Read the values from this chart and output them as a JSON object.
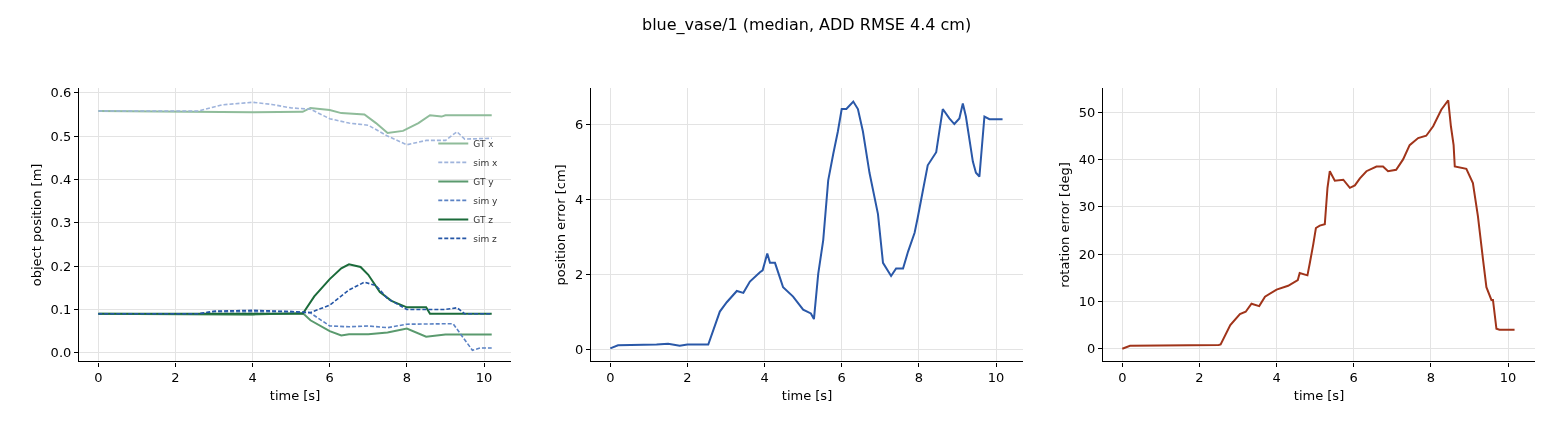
{
  "chart_data": [
    {
      "type": "line",
      "xlabel": "time [s]",
      "ylabel": "object position [m]",
      "xlim": [
        -0.5,
        10.7
      ],
      "xticks": [
        0,
        2,
        4,
        6,
        8,
        10
      ],
      "ylim": [
        -0.02,
        0.61
      ],
      "yticks": [
        {
          "value": 0,
          "label": "0.0"
        },
        {
          "value": 0.1,
          "label": "0.1"
        },
        {
          "value": 0.2,
          "label": "0.2"
        },
        {
          "value": 0.3,
          "label": "0.3"
        },
        {
          "value": 0.4,
          "label": "0.4"
        },
        {
          "value": 0.5,
          "label": "0.5"
        },
        {
          "value": 0.6,
          "label": "0.6"
        }
      ],
      "grid": true,
      "legend": "right",
      "marker": "none",
      "series": [
        {
          "name": "GT x",
          "color": "#8fbc9a",
          "line_style": "solid",
          "x": [
            0,
            4,
            5.3,
            5.5,
            6,
            6.3,
            6.9,
            7.2,
            7.5,
            7.9,
            8.3,
            8.6,
            8.9,
            9,
            10.2
          ],
          "values": [
            0.558,
            0.555,
            0.556,
            0.565,
            0.56,
            0.553,
            0.55,
            0.53,
            0.507,
            0.512,
            0.53,
            0.548,
            0.545,
            0.548,
            0.548
          ]
        },
        {
          "name": "sim x",
          "color": "#9fb4dc",
          "line_style": "dashed",
          "x": [
            0,
            2.6,
            3.2,
            4,
            4.5,
            5,
            5.5,
            6,
            6.5,
            7,
            7.5,
            8,
            8.5,
            9,
            9.3,
            9.5,
            10.2
          ],
          "values": [
            0.558,
            0.558,
            0.572,
            0.578,
            0.573,
            0.565,
            0.562,
            0.54,
            0.53,
            0.525,
            0.5,
            0.48,
            0.49,
            0.49,
            0.51,
            0.493,
            0.495
          ]
        },
        {
          "name": "GT y",
          "color": "#5a9a6e",
          "line_style": "solid",
          "x": [
            0,
            4,
            5.3,
            5.5,
            6,
            6.3,
            6.5,
            7,
            7.5,
            8,
            8.5,
            9,
            10.2
          ],
          "values": [
            0.09,
            0.088,
            0.092,
            0.075,
            0.05,
            0.04,
            0.043,
            0.043,
            0.047,
            0.056,
            0.037,
            0.042,
            0.042
          ]
        },
        {
          "name": "sim y",
          "color": "#5b82c4",
          "line_style": "dashed",
          "x": [
            0,
            2.6,
            3,
            5,
            5.5,
            6,
            6.5,
            7,
            7.5,
            8,
            9,
            9.2,
            9.5,
            9.7,
            9.9,
            10.2
          ],
          "values": [
            0.09,
            0.09,
            0.095,
            0.095,
            0.092,
            0.062,
            0.06,
            0.062,
            0.058,
            0.066,
            0.067,
            0.067,
            0.03,
            0.006,
            0.011,
            0.011
          ]
        },
        {
          "name": "GT z",
          "color": "#1b6b3a",
          "line_style": "solid",
          "x": [
            0,
            5.3,
            5.6,
            6,
            6.3,
            6.5,
            6.8,
            7,
            7.3,
            7.6,
            8,
            8.5,
            8.6,
            10.2
          ],
          "values": [
            0.09,
            0.09,
            0.13,
            0.17,
            0.195,
            0.204,
            0.198,
            0.18,
            0.14,
            0.12,
            0.105,
            0.105,
            0.09,
            0.09
          ]
        },
        {
          "name": "sim z",
          "color": "#2556a6",
          "line_style": "dashed",
          "x": [
            0,
            2.6,
            3,
            4,
            5,
            5.5,
            6,
            6.5,
            6.9,
            7.2,
            7.5,
            8,
            8.5,
            9,
            9.3,
            9.5,
            10.2
          ],
          "values": [
            0.09,
            0.09,
            0.096,
            0.098,
            0.095,
            0.093,
            0.11,
            0.145,
            0.163,
            0.155,
            0.125,
            0.1,
            0.1,
            0.1,
            0.104,
            0.09,
            0.09
          ]
        }
      ]
    },
    {
      "type": "line",
      "title": "blue_vase/1 (median, ADD RMSE 4.4 cm)",
      "xlabel": "time [s]",
      "ylabel": "position error [cm]",
      "xlim": [
        -0.5,
        10.7
      ],
      "xticks": [
        0,
        2,
        4,
        6,
        8,
        10
      ],
      "ylim": [
        -0.33,
        6.95
      ],
      "yticks": [
        0,
        2,
        4,
        6
      ],
      "grid": true,
      "marker": "none",
      "series": [
        {
          "color": "#2a58a8",
          "line_style": "solid",
          "x": [
            0,
            0.2,
            1.2,
            1.5,
            1.8,
            2,
            2.54,
            2.84,
            3.02,
            3.28,
            3.45,
            3.62,
            3.88,
            3.95,
            4.07,
            4.14,
            4.27,
            4.4,
            4.48,
            4.74,
            5.0,
            5.2,
            5.28,
            5.39,
            5.52,
            5.65,
            5.78,
            5.9,
            6.0,
            6.12,
            6.3,
            6.42,
            6.55,
            6.72,
            6.94,
            7.07,
            7.28,
            7.41,
            7.59,
            7.72,
            7.89,
            7.97,
            8.1,
            8.23,
            8.45,
            8.53,
            8.62,
            8.79,
            8.92,
            9.05,
            9.14,
            9.22,
            9.4,
            9.48,
            9.57,
            9.7,
            9.83,
            10.17
          ],
          "values": [
            0.02,
            0.1,
            0.12,
            0.14,
            0.09,
            0.12,
            0.12,
            1.0,
            1.25,
            1.55,
            1.5,
            1.8,
            2.05,
            2.1,
            2.55,
            2.3,
            2.3,
            1.9,
            1.65,
            1.4,
            1.05,
            0.95,
            0.8,
            2.0,
            2.9,
            4.5,
            5.2,
            5.8,
            6.4,
            6.4,
            6.6,
            6.4,
            5.8,
            4.7,
            3.6,
            2.3,
            1.95,
            2.15,
            2.15,
            2.6,
            3.1,
            3.5,
            4.2,
            4.9,
            5.25,
            5.8,
            6.4,
            6.15,
            6.0,
            6.15,
            6.55,
            6.2,
            5.0,
            4.7,
            4.6,
            6.2,
            6.13,
            6.13
          ]
        }
      ]
    },
    {
      "type": "line",
      "xlabel": "time [s]",
      "ylabel": "rotation error [deg]",
      "xlim": [
        -0.5,
        10.7
      ],
      "xticks": [
        0,
        2,
        4,
        6,
        8,
        10
      ],
      "ylim": [
        -2.7,
        55
      ],
      "yticks": [
        0,
        10,
        20,
        30,
        40,
        50
      ],
      "grid": true,
      "marker": "none",
      "series": [
        {
          "color": "#a0341a",
          "line_style": "solid",
          "x": [
            0,
            0.2,
            2.5,
            2.55,
            2.8,
            3.05,
            3.2,
            3.35,
            3.55,
            3.7,
            4.0,
            4.3,
            4.55,
            4.6,
            4.8,
            4.86,
            4.95,
            5.02,
            5.12,
            5.25,
            5.32,
            5.38,
            5.51,
            5.73,
            5.9,
            6.03,
            6.16,
            6.33,
            6.59,
            6.76,
            6.89,
            7.1,
            7.28,
            7.45,
            7.67,
            7.88,
            8.06,
            8.27,
            8.45,
            8.52,
            8.59,
            8.62,
            8.92,
            9.09,
            9.22,
            9.35,
            9.44,
            9.57,
            9.61,
            9.7,
            9.78,
            10.17
          ],
          "values": [
            0,
            0.6,
            0.8,
            0.9,
            5,
            7.3,
            7.8,
            9.5,
            9.0,
            11,
            12.5,
            13.3,
            14.5,
            16,
            15.5,
            18,
            22,
            25.5,
            26,
            26.3,
            34,
            37.5,
            35.5,
            35.7,
            34,
            34.5,
            36,
            37.5,
            38.5,
            38.5,
            37.5,
            37.8,
            40,
            43,
            44.5,
            45,
            47,
            50.5,
            52.5,
            47,
            43,
            38.5,
            38,
            35,
            28,
            19,
            13,
            10.3,
            10.3,
            4.2,
            4.0,
            4.0
          ]
        }
      ]
    }
  ]
}
